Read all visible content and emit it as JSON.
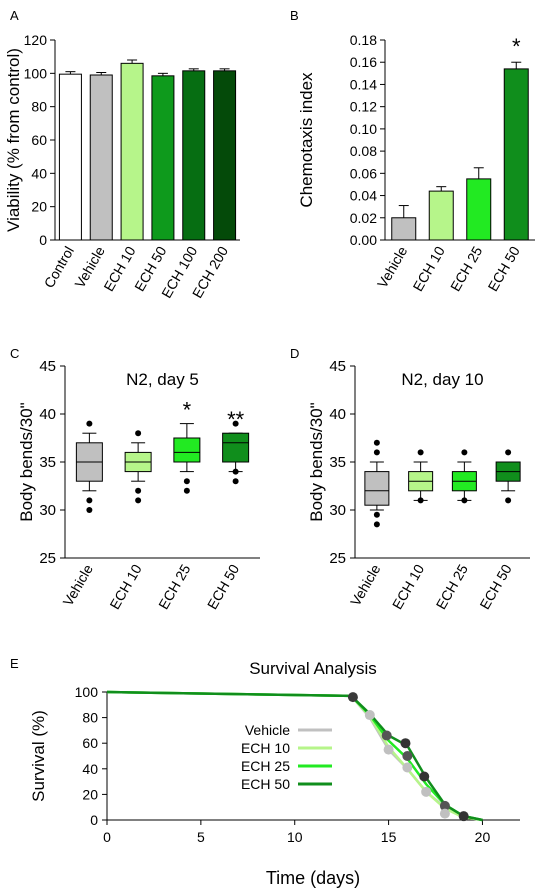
{
  "chart_data": [
    {
      "panel": "A",
      "type": "bar",
      "ylabel": "Viability (% from control)",
      "ylim": [
        0,
        120
      ],
      "yticks": [
        0,
        20,
        40,
        60,
        80,
        100,
        120
      ],
      "categories": [
        "Control",
        "Vehicle",
        "ECH 10",
        "ECH 50",
        "ECH 100",
        "ECH 200"
      ],
      "values": [
        99.5,
        99,
        106,
        98.5,
        101.5,
        101.5
      ],
      "errors": [
        1.5,
        1.5,
        2,
        1.5,
        1.2,
        1.2
      ],
      "colors": [
        "#ffffff",
        "#c0c0c0",
        "#b6f58a",
        "#0e9a1c",
        "#066e12",
        "#044a09"
      ]
    },
    {
      "panel": "B",
      "type": "bar",
      "ylabel": "Chemotaxis index",
      "ylim": [
        0,
        0.18
      ],
      "yticks": [
        "0.00",
        "0.02",
        "0.04",
        "0.06",
        "0.08",
        "0.10",
        "0.12",
        "0.14",
        "0.16",
        "0.18"
      ],
      "categories": [
        "Vehicle",
        "ECH 10",
        "ECH 25",
        "ECH 50"
      ],
      "values": [
        0.02,
        0.044,
        0.055,
        0.154
      ],
      "errors": [
        0.011,
        0.004,
        0.01,
        0.006
      ],
      "colors": [
        "#c0c0c0",
        "#b6f58a",
        "#22ea22",
        "#108e1c"
      ],
      "annotations": [
        "",
        "",
        "",
        "*"
      ]
    },
    {
      "panel": "C",
      "type": "box",
      "title": "N2, day 5",
      "ylabel": "Body bends/30\"",
      "ylim": [
        25,
        45
      ],
      "yticks": [
        25,
        30,
        35,
        40,
        45
      ],
      "categories": [
        "Vehicle",
        "ECH 10",
        "ECH 25",
        "ECH 50"
      ],
      "colors": [
        "#c0c0c0",
        "#b6f58a",
        "#22ea22",
        "#108e1c"
      ],
      "boxes": [
        {
          "q1": 33,
          "median": 35,
          "q3": 37,
          "wlow": 32,
          "whigh": 38,
          "outliers": [
            39,
            31,
            30
          ]
        },
        {
          "q1": 34,
          "median": 35,
          "q3": 36,
          "wlow": 33,
          "whigh": 37,
          "outliers": [
            38,
            32,
            31
          ]
        },
        {
          "q1": 35,
          "median": 36,
          "q3": 37.5,
          "wlow": 34,
          "whigh": 39,
          "outliers": [
            33,
            32
          ]
        },
        {
          "q1": 35,
          "median": 37,
          "q3": 38,
          "wlow": 34,
          "whigh": 38,
          "outliers": [
            39,
            34,
            33
          ]
        }
      ],
      "annotations": [
        "",
        "",
        "*",
        "**"
      ]
    },
    {
      "panel": "D",
      "type": "box",
      "title": "N2, day 10",
      "ylabel": "Body bends/30\"",
      "ylim": [
        25,
        45
      ],
      "yticks": [
        25,
        30,
        35,
        40,
        45
      ],
      "categories": [
        "Vehicle",
        "ECH 10",
        "ECH 25",
        "ECH 50"
      ],
      "colors": [
        "#c0c0c0",
        "#b6f58a",
        "#22ea22",
        "#108e1c"
      ],
      "boxes": [
        {
          "q1": 30.5,
          "median": 32,
          "q3": 34,
          "wlow": 30,
          "whigh": 35,
          "outliers": [
            37,
            36,
            29.5,
            28.5
          ]
        },
        {
          "q1": 32,
          "median": 33,
          "q3": 34,
          "wlow": 31,
          "whigh": 35,
          "outliers": [
            36,
            31
          ]
        },
        {
          "q1": 32,
          "median": 33,
          "q3": 34,
          "wlow": 31,
          "whigh": 35,
          "outliers": [
            36,
            31
          ]
        },
        {
          "q1": 33,
          "median": 34,
          "q3": 35,
          "wlow": 32,
          "whigh": 35,
          "outliers": [
            36,
            31
          ]
        }
      ]
    },
    {
      "panel": "E",
      "type": "line",
      "title": "Survival Analysis",
      "xlabel": "Time (days)",
      "ylabel": "Survival (%)",
      "xlim": [
        0,
        22
      ],
      "ylim": [
        0,
        100
      ],
      "xticks": [
        0,
        5,
        10,
        15,
        20
      ],
      "yticks": [
        0,
        20,
        40,
        60,
        80,
        100
      ],
      "series": [
        {
          "name": "Vehicle",
          "color": "#c0c0c0",
          "x": [
            0,
            13,
            14,
            15,
            16,
            17,
            18,
            19,
            20
          ],
          "y": [
            100,
            97,
            80,
            55,
            40,
            22,
            10,
            3,
            0
          ]
        },
        {
          "name": "ECH 10",
          "color": "#b6f58a",
          "x": [
            0,
            13,
            14,
            15,
            16,
            17,
            18,
            19,
            20
          ],
          "y": [
            100,
            97,
            81,
            57,
            40,
            22,
            9,
            2,
            0
          ]
        },
        {
          "name": "ECH 25",
          "color": "#22ea22",
          "x": [
            0,
            13,
            14,
            15,
            16,
            17,
            18,
            19,
            20
          ],
          "y": [
            100,
            97,
            82,
            62,
            48,
            28,
            12,
            3,
            0
          ]
        },
        {
          "name": "ECH 50",
          "color": "#108e1c",
          "x": [
            0,
            13,
            14,
            15,
            16,
            17,
            18,
            19,
            20
          ],
          "y": [
            100,
            97,
            83,
            66,
            58,
            33,
            12,
            3,
            0
          ]
        }
      ],
      "censor_points": [
        {
          "x": 13.1,
          "y": 96,
          "color": "#3a3a3a"
        },
        {
          "x": 14,
          "y": 82,
          "color": "#c0c0c0"
        },
        {
          "x": 14.9,
          "y": 66,
          "color": "#555555"
        },
        {
          "x": 15,
          "y": 55,
          "color": "#c0c0c0"
        },
        {
          "x": 15.9,
          "y": 60,
          "color": "#333333"
        },
        {
          "x": 16,
          "y": 50,
          "color": "#555555"
        },
        {
          "x": 16,
          "y": 41,
          "color": "#c0c0c0"
        },
        {
          "x": 16.9,
          "y": 34,
          "color": "#333333"
        },
        {
          "x": 17,
          "y": 22,
          "color": "#c0c0c0"
        },
        {
          "x": 18,
          "y": 11,
          "color": "#555555"
        },
        {
          "x": 18,
          "y": 5,
          "color": "#c0c0c0"
        },
        {
          "x": 19,
          "y": 3,
          "color": "#333333"
        }
      ]
    }
  ]
}
